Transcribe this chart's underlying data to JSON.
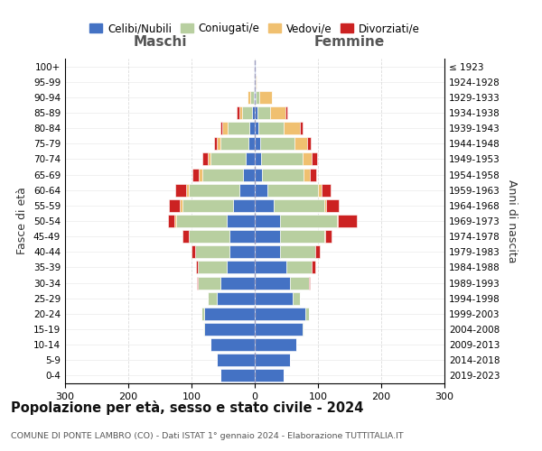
{
  "age_groups": [
    "0-4",
    "5-9",
    "10-14",
    "15-19",
    "20-24",
    "25-29",
    "30-34",
    "35-39",
    "40-44",
    "45-49",
    "50-54",
    "55-59",
    "60-64",
    "65-69",
    "70-74",
    "75-79",
    "80-84",
    "85-89",
    "90-94",
    "95-99",
    "100+"
  ],
  "birth_years": [
    "2019-2023",
    "2014-2018",
    "2009-2013",
    "2004-2008",
    "1999-2003",
    "1994-1998",
    "1989-1993",
    "1984-1988",
    "1979-1983",
    "1974-1978",
    "1969-1973",
    "1964-1968",
    "1959-1963",
    "1954-1958",
    "1949-1953",
    "1944-1948",
    "1939-1943",
    "1934-1938",
    "1929-1933",
    "1924-1928",
    "≤ 1923"
  ],
  "colors": {
    "celibi": "#4472c4",
    "coniugati": "#b8cfa0",
    "vedovi": "#f0c070",
    "divorziati": "#cc2222"
  },
  "maschi": {
    "celibi": [
      55,
      60,
      70,
      80,
      80,
      60,
      55,
      45,
      40,
      40,
      45,
      35,
      25,
      18,
      15,
      10,
      8,
      5,
      2,
      1,
      1
    ],
    "coniugati": [
      0,
      0,
      0,
      2,
      5,
      15,
      35,
      45,
      55,
      65,
      80,
      80,
      80,
      65,
      55,
      45,
      35,
      15,
      5,
      0,
      0
    ],
    "vedovi": [
      0,
      0,
      0,
      0,
      0,
      0,
      0,
      0,
      0,
      0,
      2,
      3,
      3,
      5,
      5,
      5,
      8,
      5,
      5,
      0,
      0
    ],
    "divorziati": [
      0,
      0,
      0,
      0,
      0,
      0,
      2,
      3,
      5,
      10,
      10,
      18,
      18,
      10,
      8,
      5,
      3,
      3,
      0,
      0,
      0
    ]
  },
  "femmine": {
    "celibi": [
      45,
      55,
      65,
      75,
      80,
      60,
      55,
      50,
      40,
      40,
      40,
      30,
      20,
      12,
      10,
      8,
      6,
      4,
      2,
      1,
      1
    ],
    "coniugati": [
      0,
      0,
      0,
      2,
      5,
      12,
      30,
      40,
      55,
      70,
      90,
      80,
      80,
      65,
      65,
      55,
      40,
      20,
      5,
      0,
      0
    ],
    "vedovi": [
      0,
      0,
      0,
      0,
      0,
      0,
      0,
      0,
      0,
      2,
      2,
      3,
      5,
      10,
      15,
      20,
      25,
      25,
      20,
      2,
      1
    ],
    "divorziati": [
      0,
      0,
      0,
      0,
      0,
      0,
      2,
      5,
      8,
      10,
      30,
      20,
      15,
      10,
      8,
      5,
      5,
      3,
      0,
      0,
      0
    ]
  },
  "xlim": 300,
  "title": "Popolazione per età, sesso e stato civile - 2024",
  "subtitle": "COMUNE DI PONTE LAMBRO (CO) - Dati ISTAT 1° gennaio 2024 - Elaborazione TUTTITALIA.IT",
  "ylabel_left": "Fasce di età",
  "ylabel_right": "Anni di nascita",
  "xlabel_maschi": "Maschi",
  "xlabel_femmine": "Femmine",
  "legend_labels": [
    "Celibi/Nubili",
    "Coniugati/e",
    "Vedovi/e",
    "Divorziati/e"
  ],
  "background_color": "#ffffff",
  "grid_color": "#cccccc"
}
